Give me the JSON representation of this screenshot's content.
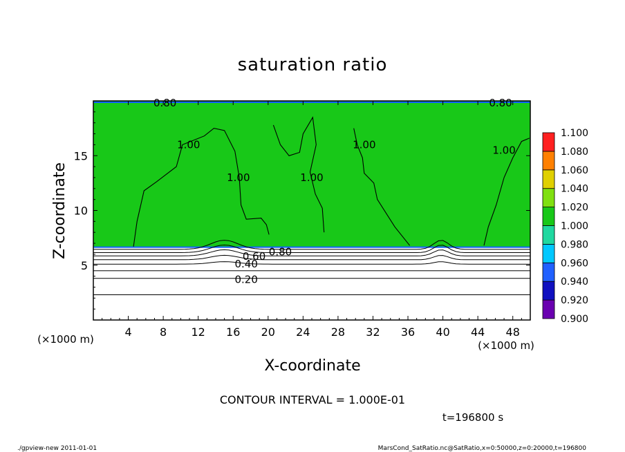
{
  "chart_data": {
    "type": "heatmap",
    "title": "saturation ratio",
    "xlabel": "X-coordinate",
    "ylabel": "Z-coordinate",
    "xunit_left": "(×1000 m)",
    "xunit_right": "(×1000 m)",
    "xlim": [
      0,
      50
    ],
    "ylim": [
      0,
      20
    ],
    "xticks": [
      4,
      8,
      12,
      16,
      20,
      24,
      28,
      32,
      36,
      40,
      44,
      48
    ],
    "yticks": [
      5,
      10,
      15
    ],
    "colorbar": {
      "levels": [
        "0.900",
        "0.920",
        "0.940",
        "0.960",
        "0.980",
        "1.000",
        "1.020",
        "1.040",
        "1.060",
        "1.080",
        "1.100"
      ],
      "colors": [
        "#6a00b0",
        "#1010c0",
        "#2060ff",
        "#00c8ff",
        "#20d8a0",
        "#18c818",
        "#80e010",
        "#e0d000",
        "#ff8000",
        "#ff2020",
        "#ff9090"
      ]
    },
    "contour_labels": [
      {
        "text": "0.20",
        "x": 17.5,
        "z": 3.7
      },
      {
        "text": "0.40",
        "x": 17.5,
        "z": 5.1
      },
      {
        "text": "0.60",
        "x": 18.4,
        "z": 5.8
      },
      {
        "text": "0.80",
        "x": 21.4,
        "z": 6.2
      },
      {
        "text": "1.00",
        "x": 10.9,
        "z": 16.0
      },
      {
        "text": "1.00",
        "x": 16.6,
        "z": 13.0
      },
      {
        "text": "1.00",
        "x": 25.0,
        "z": 13.0
      },
      {
        "text": "1.00",
        "x": 31.0,
        "z": 16.0
      },
      {
        "text": "1.00",
        "x": 47.0,
        "z": 15.5
      },
      {
        "text": "0.80",
        "x": 8.2,
        "z": 19.8
      },
      {
        "text": "0.80",
        "x": 46.6,
        "z": 19.8
      }
    ],
    "contour_interval": "CONTOUR INTERVAL = 1.000E-01",
    "time": "t=196800 s"
  },
  "footer": {
    "left": "./gpview-new  2011-01-01",
    "right": "MarsCond_SatRatio.nc@SatRatio,x=0:50000,z=0:20000,t=196800"
  }
}
